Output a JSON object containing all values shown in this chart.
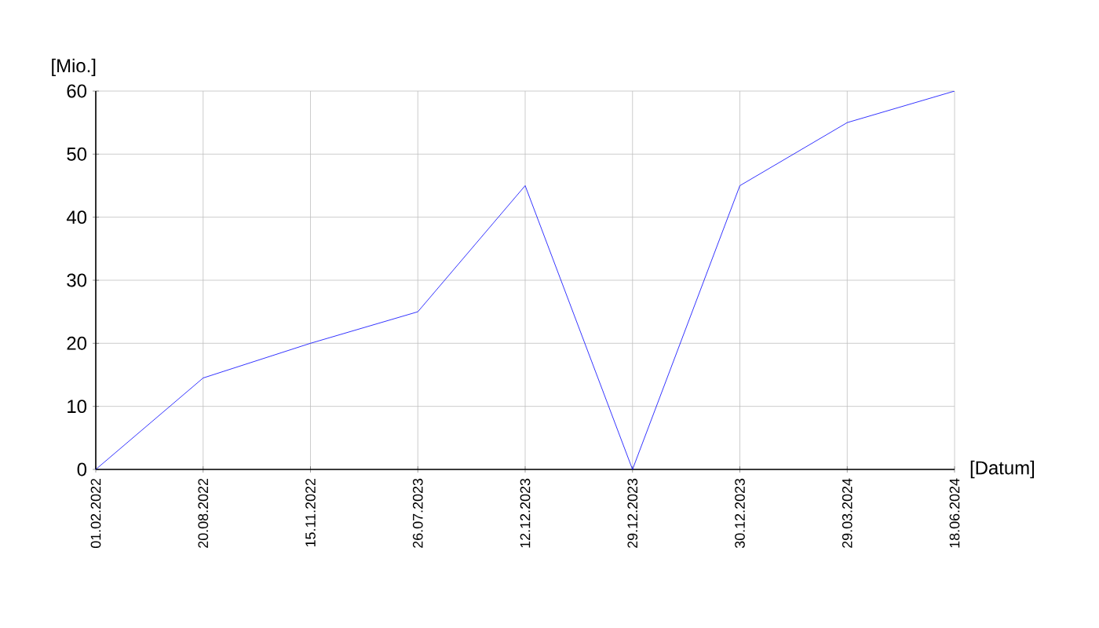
{
  "chart_data": {
    "type": "line",
    "xlabel": "[Datum]",
    "ylabel": "[Mio.]",
    "categories": [
      "01.02.2022",
      "20.08.2022",
      "15.11.2022",
      "26.07.2023",
      "12.12.2023",
      "29.12.2023",
      "30.12.2023",
      "29.03.2024",
      "18.06.2024"
    ],
    "values": [
      0,
      14.5,
      20,
      25,
      45,
      0,
      45,
      55,
      60
    ],
    "color": "#0000ff",
    "ylim": [
      0,
      60
    ],
    "yticks": [
      0,
      10,
      20,
      30,
      40,
      50,
      60
    ],
    "grid": true,
    "marker": "none",
    "line_style": "solid"
  }
}
